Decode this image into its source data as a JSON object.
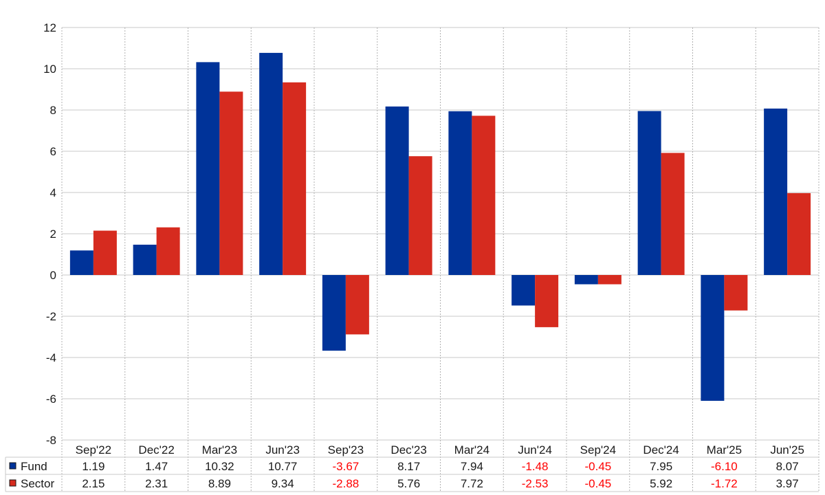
{
  "chart_data": {
    "type": "bar",
    "categories": [
      "Sep'22",
      "Dec'22",
      "Mar'23",
      "Jun'23",
      "Sep'23",
      "Dec'23",
      "Mar'24",
      "Jun'24",
      "Sep'24",
      "Dec'24",
      "Mar'25",
      "Jun'25"
    ],
    "series": [
      {
        "name": "Fund",
        "color": "#003399",
        "values": [
          1.19,
          1.47,
          10.32,
          10.77,
          -3.67,
          8.17,
          7.94,
          -1.48,
          -0.45,
          7.95,
          -6.1,
          8.07
        ],
        "labels": [
          "1.19",
          "1.47",
          "10.32",
          "10.77",
          "-3.67",
          "8.17",
          "7.94",
          "-1.48",
          "-0.45",
          "7.95",
          "-6.10",
          "8.07"
        ]
      },
      {
        "name": "Sector",
        "color": "#d62b1f",
        "values": [
          2.15,
          2.31,
          8.89,
          9.34,
          -2.88,
          5.76,
          7.72,
          -2.53,
          -0.45,
          5.92,
          -1.72,
          3.97
        ],
        "labels": [
          "2.15",
          "2.31",
          "8.89",
          "9.34",
          "-2.88",
          "5.76",
          "7.72",
          "-2.53",
          "-0.45",
          "5.92",
          "-1.72",
          "3.97"
        ]
      }
    ],
    "yticks": [
      "12",
      "10",
      "8",
      "6",
      "4",
      "2",
      "0",
      "-2",
      "-4",
      "-6",
      "-8"
    ],
    "ylim": [
      -8,
      12
    ],
    "grid": true,
    "negative_color": "#ff0000",
    "legend": "data table below chart"
  }
}
